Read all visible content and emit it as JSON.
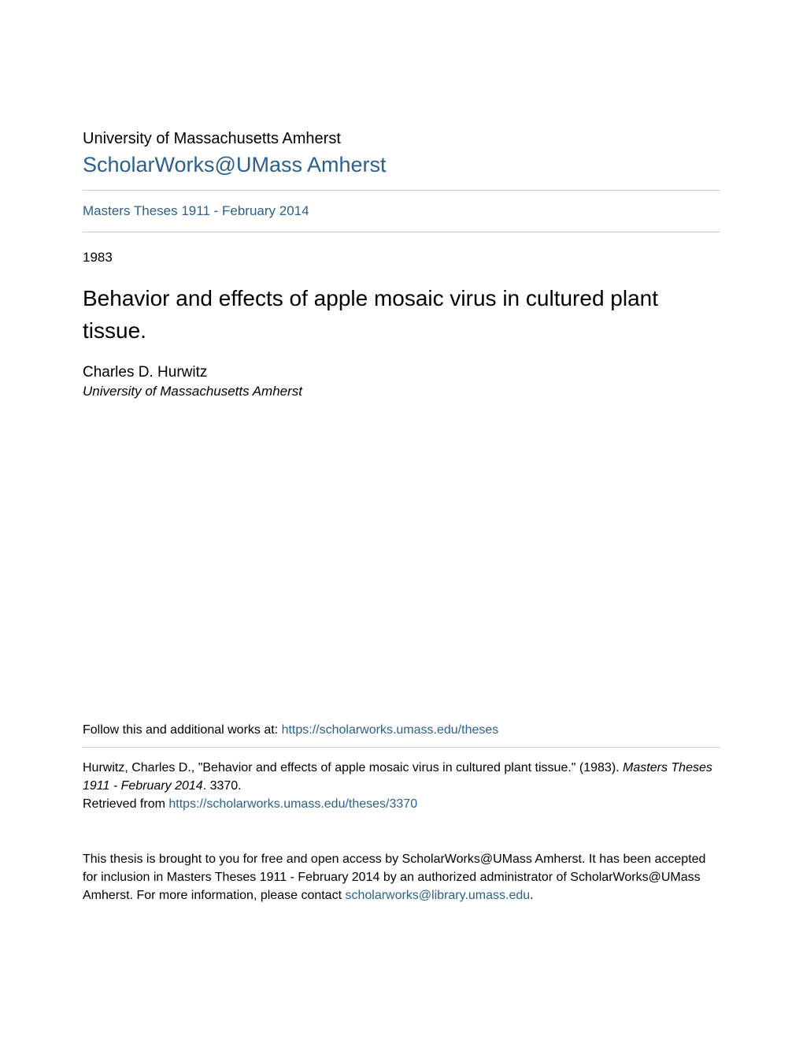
{
  "header": {
    "institution": "University of Massachusetts Amherst",
    "repository_name": "ScholarWorks@UMass Amherst",
    "collection_name": "Masters Theses 1911 - February 2014"
  },
  "document": {
    "year": "1983",
    "title": "Behavior and effects of apple mosaic virus in cultured plant tissue.",
    "author_name": "Charles D. Hurwitz",
    "author_affiliation": "University of Massachusetts Amherst"
  },
  "follow": {
    "prefix": "Follow this and additional works at: ",
    "url": "https://scholarworks.umass.edu/theses"
  },
  "citation": {
    "text_part1": "Hurwitz, Charles D., \"Behavior and effects of apple mosaic virus in cultured plant tissue.\" (1983). ",
    "text_italic": "Masters Theses 1911 - February 2014",
    "text_part2": ". 3370.",
    "retrieved_label": "Retrieved from ",
    "retrieved_url": "https://scholarworks.umass.edu/theses/3370"
  },
  "footer": {
    "text_part1": "This thesis is brought to you for free and open access by ScholarWorks@UMass Amherst. It has been accepted for inclusion in Masters Theses 1911 - February 2014 by an authorized administrator of ScholarWorks@UMass Amherst. For more information, please contact ",
    "email": "scholarworks@library.umass.edu",
    "text_part2": "."
  },
  "colors": {
    "link_color": "#2c5f8d",
    "text_color": "#000000",
    "divider_color": "#cccccc",
    "background_color": "#ffffff"
  },
  "typography": {
    "institution_fontsize": 20,
    "repository_fontsize": 27,
    "collection_fontsize": 17,
    "year_fontsize": 17,
    "title_fontsize": 28,
    "author_fontsize": 19,
    "affiliation_fontsize": 17,
    "body_fontsize": 16
  }
}
